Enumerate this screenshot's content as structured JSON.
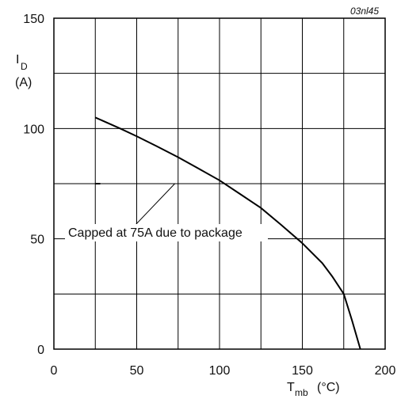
{
  "chart_data": {
    "type": "line",
    "code": "03nl45",
    "x_ticks": [
      0,
      50,
      100,
      150,
      200
    ],
    "y_ticks": [
      0,
      50,
      100,
      150
    ],
    "x_ticks_text": [
      "0",
      "50",
      "100",
      "150",
      "200"
    ],
    "y_ticks_text": [
      "0",
      "50",
      "100",
      "150"
    ],
    "xlim": [
      0,
      200
    ],
    "ylim": [
      0,
      150
    ],
    "grid": true,
    "xlabel": {
      "main": "T",
      "sub": "mb",
      "unit": "(°C)"
    },
    "ylabel": {
      "main": "I",
      "sub": "D",
      "unit": "(A)"
    },
    "series": [
      {
        "x": [
          25,
          40,
          50,
          62,
          75,
          87,
          100,
          112,
          125,
          137,
          150,
          162,
          168,
          175,
          180,
          185
        ],
        "y": [
          105,
          100,
          96.5,
          92,
          87,
          82,
          76.5,
          70.5,
          64,
          56.5,
          48,
          39,
          33,
          25,
          13,
          0
        ]
      }
    ],
    "cap_line": {
      "y": 75,
      "x_start": 25,
      "x_end": 103,
      "solid_end": 28
    },
    "annotation": {
      "text": "Capped at 75A due to package",
      "point": [
        73,
        75
      ],
      "label_at": [
        45,
        53
      ]
    }
  }
}
